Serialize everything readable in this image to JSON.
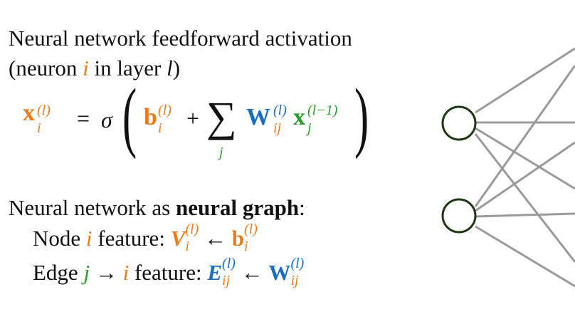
{
  "text": {
    "title_line1": "Neural network feedforward activation",
    "title_line2_open": "(neuron ",
    "neuron_var": "i",
    "title_line2_mid": " in layer ",
    "layer_var": "l",
    "title_line2_close": ")"
  },
  "equation": {
    "x": "x",
    "x_sub": "i",
    "layer_sup": "(l)",
    "equals": "=",
    "sigma": "σ",
    "lparen": "(",
    "b": "b",
    "b_sub": "i",
    "plus": "+",
    "sum": "∑",
    "sum_sub": "j",
    "W": "W",
    "W_sub": "ij",
    "x2_sub": "j",
    "prev_layer_sup": "(l−1)",
    "rparen": ")"
  },
  "graph_text": {
    "intro_prefix": "Neural network as ",
    "intro_bold": "neural graph",
    "intro_suffix": ":",
    "node_prefix": "Node ",
    "node_var": "i",
    "node_suffix": " feature: ",
    "V": "V",
    "V_sub": "i",
    "arrow": "←",
    "b": "b",
    "b_sub": "i",
    "layer_sup": "(l)",
    "edge_prefix": "Edge ",
    "edge_from": "j",
    "edge_arrow": "→",
    "edge_to": "i",
    "edge_suffix": " feature: ",
    "E": "E",
    "E_sub": "ij",
    "W": "W",
    "W_sub": "ij"
  },
  "colors": {
    "orange": "#ee7a1a",
    "green": "#2a9d2a",
    "blue": "#1b6fc2",
    "node_stroke": "#1e3a14",
    "edge_stroke": "#9a9a9a"
  },
  "icons": [
    "neural-network-diagram"
  ]
}
